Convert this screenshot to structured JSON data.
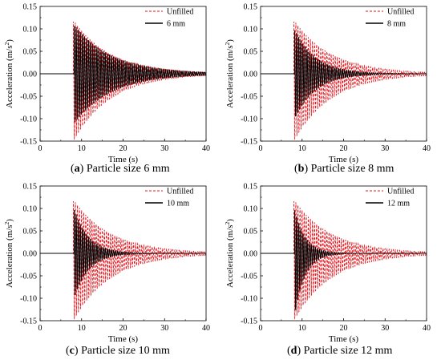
{
  "colors": {
    "unfilled": "#e8141c",
    "filled": "#000000"
  },
  "chart_data": [
    {
      "type": "line",
      "panel_letter": "a",
      "caption": "Particle size 6 mm",
      "xlabel": "Time (s)",
      "ylabel_main": "Acceleration (m/s",
      "ylabel_sup": "2",
      "ylabel_end": ")",
      "xlim": [
        0,
        40
      ],
      "ylim": [
        -0.15,
        0.15
      ],
      "xticks": [
        "0",
        "10",
        "20",
        "30",
        "40"
      ],
      "yticks": [
        "-0.15",
        "-0.10",
        "-0.05",
        "0.00",
        "0.05",
        "0.10",
        "0.15"
      ],
      "legend_position": "top-right",
      "series": [
        {
          "name": "Unfilled",
          "style": "dashed",
          "color": "#e8141c",
          "onset": 8.0,
          "peak_pos": 0.12,
          "peak_neg": -0.15,
          "decay_time": 9.0,
          "period": 0.5
        },
        {
          "name": "6 mm",
          "style": "solid",
          "color": "#000000",
          "onset": 8.2,
          "peak_pos": 0.11,
          "peak_neg": -0.11,
          "decay_time": 9.0,
          "period": 0.5
        }
      ]
    },
    {
      "type": "line",
      "panel_letter": "b",
      "caption": "Particle size 8 mm",
      "xlabel": "Time (s)",
      "ylabel_main": "Acceleration (m/s",
      "ylabel_sup": "2",
      "ylabel_end": ")",
      "xlim": [
        0,
        40
      ],
      "ylim": [
        -0.15,
        0.15
      ],
      "xticks": [
        "0",
        "10",
        "20",
        "30",
        "40"
      ],
      "yticks": [
        "-0.15",
        "-0.10",
        "-0.05",
        "0.00",
        "0.05",
        "0.10",
        "0.15"
      ],
      "legend_position": "top-right",
      "series": [
        {
          "name": "Unfilled",
          "style": "dashed",
          "color": "#e8141c",
          "onset": 8.0,
          "peak_pos": 0.12,
          "peak_neg": -0.15,
          "decay_time": 9.0,
          "period": 0.5
        },
        {
          "name": "8 mm",
          "style": "solid",
          "color": "#000000",
          "onset": 8.2,
          "peak_pos": 0.1,
          "peak_neg": -0.1,
          "decay_time": 5.0,
          "period": 0.5
        }
      ]
    },
    {
      "type": "line",
      "panel_letter": "c",
      "caption": "Particle size 10 mm",
      "xlabel": "Time (s)",
      "ylabel_main": "Acceleration (m/s",
      "ylabel_sup": "2",
      "ylabel_end": ")",
      "xlim": [
        0,
        40
      ],
      "ylim": [
        -0.15,
        0.15
      ],
      "xticks": [
        "0",
        "10",
        "20",
        "30",
        "40"
      ],
      "yticks": [
        "-0.15",
        "-0.10",
        "-0.05",
        "0.00",
        "0.05",
        "0.10",
        "0.15"
      ],
      "legend_position": "top-right",
      "series": [
        {
          "name": "Unfilled",
          "style": "dashed",
          "color": "#e8141c",
          "onset": 8.0,
          "peak_pos": 0.12,
          "peak_neg": -0.15,
          "decay_time": 9.0,
          "period": 0.5
        },
        {
          "name": "10 mm",
          "style": "solid",
          "color": "#000000",
          "onset": 8.2,
          "peak_pos": 0.1,
          "peak_neg": -0.1,
          "decay_time": 3.5,
          "period": 0.5
        }
      ]
    },
    {
      "type": "line",
      "panel_letter": "d",
      "caption": "Particle size 12 mm",
      "xlabel": "Time (s)",
      "ylabel_main": "Acceleration (m/s",
      "ylabel_sup": "2",
      "ylabel_end": ")",
      "xlim": [
        0,
        40
      ],
      "ylim": [
        -0.15,
        0.15
      ],
      "xticks": [
        "0",
        "10",
        "20",
        "30",
        "40"
      ],
      "yticks": [
        "-0.15",
        "-0.10",
        "-0.05",
        "0.00",
        "0.05",
        "0.10",
        "0.15"
      ],
      "legend_position": "top-right",
      "series": [
        {
          "name": "Unfilled",
          "style": "dashed",
          "color": "#e8141c",
          "onset": 8.0,
          "peak_pos": 0.12,
          "peak_neg": -0.15,
          "decay_time": 9.0,
          "period": 0.5
        },
        {
          "name": "12 mm",
          "style": "solid",
          "color": "#000000",
          "onset": 8.2,
          "peak_pos": 0.1,
          "peak_neg": -0.14,
          "decay_time": 2.5,
          "period": 0.5
        }
      ]
    }
  ]
}
